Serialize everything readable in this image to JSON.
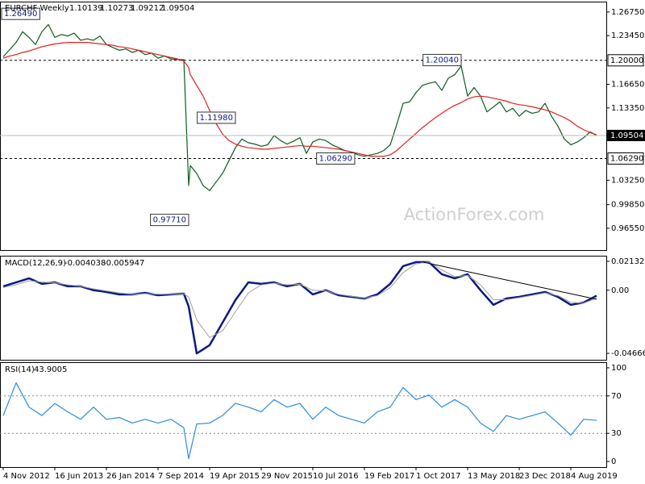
{
  "chart_data": [
    {
      "type": "line",
      "title": "EURCHF Weekly",
      "ohlc_last": [
        1.10139,
        1.10273,
        1.09212
      ],
      "watermark": "ActionForex.com",
      "x": [
        "2012-11-04",
        "2012-12-02",
        "2012-12-30",
        "2013-01-27",
        "2013-02-24",
        "2013-03-24",
        "2013-04-21",
        "2013-05-19",
        "2013-06-16",
        "2013-07-14",
        "2013-08-11",
        "2013-09-08",
        "2013-10-06",
        "2013-11-03",
        "2013-12-01",
        "2013-12-29",
        "2014-01-26",
        "2014-02-23",
        "2014-03-23",
        "2014-04-20",
        "2014-05-18",
        "2014-06-15",
        "2014-07-13",
        "2014-08-10",
        "2014-09-07",
        "2014-10-05",
        "2014-11-02",
        "2014-11-30",
        "2014-12-28",
        "2015-01-18",
        "2015-01-25",
        "2015-02-22",
        "2015-03-22",
        "2015-04-19",
        "2015-05-17",
        "2015-06-14",
        "2015-07-12",
        "2015-08-09",
        "2015-09-06",
        "2015-10-04",
        "2015-11-01",
        "2015-11-29",
        "2015-12-27",
        "2016-01-24",
        "2016-02-21",
        "2016-03-20",
        "2016-04-17",
        "2016-05-15",
        "2016-06-12",
        "2016-07-10",
        "2016-08-07",
        "2016-09-04",
        "2016-10-02",
        "2016-10-30",
        "2016-11-27",
        "2016-12-25",
        "2017-01-22",
        "2017-02-19",
        "2017-03-19",
        "2017-04-16",
        "2017-05-14",
        "2017-06-11",
        "2017-07-09",
        "2017-08-06",
        "2017-09-03",
        "2017-10-01",
        "2017-10-29",
        "2017-11-26",
        "2017-12-24",
        "2018-01-21",
        "2018-02-18",
        "2018-03-18",
        "2018-04-15",
        "2018-05-13",
        "2018-06-10",
        "2018-07-08",
        "2018-08-05",
        "2018-09-02",
        "2018-09-30",
        "2018-10-28",
        "2018-11-25",
        "2018-12-23",
        "2019-01-20",
        "2019-02-17",
        "2019-03-17",
        "2019-04-14",
        "2019-05-12",
        "2019-06-09",
        "2019-07-07",
        "2019-08-04",
        "2019-09-01",
        "2019-09-29",
        "2019-10-27",
        "2019-11-24"
      ],
      "xlim": [
        "2012-10-21",
        "2020-01-05"
      ],
      "ylim": [
        0.935,
        1.282
      ],
      "yticks": [
        {
          "value": 1.2675,
          "label": "1.26750"
        },
        {
          "value": 1.2345,
          "label": "1.23450"
        },
        {
          "value": 1.1665,
          "label": "1.16650"
        },
        {
          "value": 1.1335,
          "label": "1.13350"
        },
        {
          "value": 1.0325,
          "label": "1.03250"
        },
        {
          "value": 0.9985,
          "label": "0.99850"
        },
        {
          "value": 0.9655,
          "label": "0.96550"
        }
      ],
      "levels": [
        {
          "value": 1.2,
          "label": "1.20000"
        },
        {
          "value": 1.0629,
          "label": "1.06290"
        }
      ],
      "annotations": [
        {
          "x": "2013-01-06",
          "value": 1.2649,
          "label": "1.26490"
        },
        {
          "x": "2018-04-15",
          "value": 1.2004,
          "label": "1.20040"
        },
        {
          "x": "2015-08-09",
          "value": 1.1198,
          "label": "1.11980"
        },
        {
          "x": "2017-01-08",
          "value": 1.0629,
          "label": "1.06290"
        },
        {
          "x": "2015-01-18",
          "value": 0.9771,
          "label": "0.97710"
        }
      ],
      "series": [
        {
          "color": "#0b5d1e",
          "values": [
            1.205,
            1.215,
            1.225,
            1.24,
            1.232,
            1.222,
            1.24,
            1.25,
            1.232,
            1.236,
            1.234,
            1.238,
            1.228,
            1.23,
            1.228,
            1.234,
            1.222,
            1.218,
            1.214,
            1.216,
            1.211,
            1.214,
            1.208,
            1.21,
            1.203,
            1.206,
            1.202,
            1.201,
            1.201,
            1.025,
            1.053,
            1.042,
            1.025,
            1.018,
            1.03,
            1.042,
            1.06,
            1.078,
            1.09,
            1.085,
            1.083,
            1.08,
            1.082,
            1.095,
            1.088,
            1.083,
            1.087,
            1.092,
            1.07,
            1.086,
            1.09,
            1.088,
            1.082,
            1.078,
            1.074,
            1.072,
            1.068,
            1.066,
            1.068,
            1.07,
            1.074,
            1.082,
            1.11,
            1.14,
            1.142,
            1.155,
            1.165,
            1.168,
            1.17,
            1.158,
            1.175,
            1.18,
            1.192,
            1.15,
            1.162,
            1.15,
            1.128,
            1.135,
            1.142,
            1.128,
            1.133,
            1.122,
            1.13,
            1.126,
            1.128,
            1.14,
            1.122,
            1.108,
            1.09,
            1.082,
            1.086,
            1.092,
            1.1,
            1.09504
          ]
        },
        {
          "color": "#e02020",
          "values": [
            1.203,
            1.206,
            1.208,
            1.211,
            1.213,
            1.216,
            1.219,
            1.221,
            1.223,
            1.224,
            1.225,
            1.225,
            1.225,
            1.225,
            1.224,
            1.223,
            1.222,
            1.221,
            1.219,
            1.218,
            1.216,
            1.214,
            1.212,
            1.21,
            1.208,
            1.206,
            1.204,
            1.202,
            1.199,
            1.19,
            1.18,
            1.165,
            1.15,
            1.13,
            1.112,
            1.097,
            1.088,
            1.083,
            1.08,
            1.078,
            1.077,
            1.076,
            1.076,
            1.077,
            1.078,
            1.079,
            1.08,
            1.081,
            1.08,
            1.08,
            1.079,
            1.078,
            1.077,
            1.076,
            1.074,
            1.072,
            1.07,
            1.068,
            1.066,
            1.066,
            1.066,
            1.068,
            1.074,
            1.082,
            1.09,
            1.098,
            1.106,
            1.113,
            1.12,
            1.126,
            1.132,
            1.137,
            1.141,
            1.146,
            1.149,
            1.15,
            1.149,
            1.147,
            1.145,
            1.143,
            1.14,
            1.138,
            1.137,
            1.135,
            1.133,
            1.131,
            1.128,
            1.124,
            1.12,
            1.115,
            1.108,
            1.103,
            1.099,
            1.096
          ]
        }
      ]
    },
    {
      "type": "line",
      "title": "MACD(12,26,9)",
      "x": [
        "2012-11-04",
        "2012-12-30",
        "2013-02-24",
        "2013-04-21",
        "2013-06-16",
        "2013-08-11",
        "2013-10-06",
        "2013-12-01",
        "2014-01-26",
        "2014-03-23",
        "2014-05-18",
        "2014-07-13",
        "2014-09-07",
        "2014-11-02",
        "2014-12-28",
        "2015-01-18",
        "2015-02-22",
        "2015-04-19",
        "2015-06-14",
        "2015-08-09",
        "2015-10-04",
        "2015-11-29",
        "2016-01-24",
        "2016-03-20",
        "2016-05-15",
        "2016-07-10",
        "2016-09-04",
        "2016-10-30",
        "2016-12-25",
        "2017-02-19",
        "2017-04-16",
        "2017-06-11",
        "2017-08-06",
        "2017-10-01",
        "2017-11-26",
        "2018-01-21",
        "2018-03-18",
        "2018-05-13",
        "2018-07-08",
        "2018-09-02",
        "2018-10-28",
        "2018-12-23",
        "2019-02-17",
        "2019-04-14",
        "2019-06-09",
        "2019-08-04",
        "2019-09-29",
        "2019-11-24"
      ],
      "xlim": [
        "2012-10-21",
        "2020-01-05"
      ],
      "ylim": [
        -0.0514,
        0.0255
      ],
      "yticks": [
        0.021324,
        {
          "value": 0,
          "label": "0.00"
        },
        -0.046663
      ],
      "series": [
        {
          "color": "#0a1a80",
          "values": [
            0.0029,
            0.0058,
            0.0088,
            0.0047,
            0.0058,
            0.0029,
            0.0029,
            0,
            -0.0013,
            -0.0031,
            -0.0031,
            -0.0019,
            -0.0037,
            -0.0031,
            -0.0025,
            -0.012,
            -0.0467,
            -0.0406,
            -0.024,
            -0.0073,
            0.0058,
            0.0047,
            0.0058,
            0.0029,
            0.0047,
            -0.0031,
            0,
            -0.0037,
            -0.0049,
            -0.0061,
            -0.0031,
            0.0047,
            0.0178,
            0.0208,
            0.0208,
            0.0118,
            0.0088,
            0.0118,
            0,
            -0.0108,
            -0.0061,
            -0.0049,
            -0.0031,
            -0.0013,
            -0.0049,
            -0.0108,
            -0.0091,
            -0.004038
          ]
        },
        {
          "color": "#a0a0a0",
          "values": [
            0.002,
            0.004,
            0.007,
            0.006,
            0.0055,
            0.004,
            0.003,
            0.001,
            -0.0005,
            -0.002,
            -0.003,
            -0.0025,
            -0.003,
            -0.003,
            -0.0027,
            -0.005,
            -0.022,
            -0.035,
            -0.03,
            -0.016,
            -0.002,
            0.004,
            0.0052,
            0.004,
            0.0045,
            0,
            -0.0005,
            -0.003,
            -0.0045,
            -0.0057,
            -0.004,
            0.002,
            0.013,
            0.0195,
            0.021,
            0.015,
            0.01,
            0.011,
            0.004,
            -0.007,
            -0.007,
            -0.0055,
            -0.0038,
            -0.002,
            -0.004,
            -0.009,
            -0.0095,
            -0.005947
          ]
        }
      ]
    },
    {
      "type": "line",
      "title": "RSI(14)",
      "x": [
        "2012-11-04",
        "2012-12-30",
        "2013-02-24",
        "2013-04-21",
        "2013-06-16",
        "2013-08-11",
        "2013-10-06",
        "2013-12-01",
        "2014-01-26",
        "2014-03-23",
        "2014-05-18",
        "2014-07-13",
        "2014-09-07",
        "2014-11-02",
        "2014-12-28",
        "2015-01-18",
        "2015-02-22",
        "2015-04-19",
        "2015-06-14",
        "2015-08-09",
        "2015-10-04",
        "2015-11-29",
        "2016-01-24",
        "2016-03-20",
        "2016-05-15",
        "2016-07-10",
        "2016-09-04",
        "2016-10-30",
        "2016-12-25",
        "2017-02-19",
        "2017-04-16",
        "2017-06-11",
        "2017-08-06",
        "2017-10-01",
        "2017-11-26",
        "2018-01-21",
        "2018-03-18",
        "2018-05-13",
        "2018-07-08",
        "2018-09-02",
        "2018-10-28",
        "2018-12-23",
        "2019-02-17",
        "2019-04-14",
        "2019-06-09",
        "2019-08-04",
        "2019-09-29",
        "2019-11-24"
      ],
      "xlim": [
        "2012-10-21",
        "2020-01-05"
      ],
      "ylim": [
        -6,
        106
      ],
      "yticks": [
        100,
        70,
        30,
        0
      ],
      "levels": [
        70,
        30
      ],
      "xticks": [
        {
          "value": "2012-11-04",
          "label": "4 Nov 2012"
        },
        {
          "value": "2013-06-16",
          "label": "16 Jun 2013"
        },
        {
          "value": "2014-01-26",
          "label": "26 Jan 2014"
        },
        {
          "value": "2014-09-07",
          "label": "7 Sep 2014"
        },
        {
          "value": "2015-04-19",
          "label": "19 Apr 2015"
        },
        {
          "value": "2015-11-29",
          "label": "29 Nov 2015"
        },
        {
          "value": "2016-07-10",
          "label": "10 Jul 2016"
        },
        {
          "value": "2017-02-19",
          "label": "19 Feb 2017"
        },
        {
          "value": "2017-10-01",
          "label": "1 Oct 2017"
        },
        {
          "value": "2018-05-13",
          "label": "13 May 2018"
        },
        {
          "value": "2018-12-23",
          "label": "23 Dec 2018"
        },
        {
          "value": "2019-08-04",
          "label": "4 Aug 2019"
        }
      ],
      "series": [
        {
          "color": "#2a8be0",
          "values": [
            49,
            84,
            58,
            49,
            62,
            53,
            45,
            58,
            45,
            47,
            41,
            45,
            41,
            45,
            36,
            3,
            40,
            41,
            49,
            62,
            58,
            53,
            66,
            58,
            62,
            45,
            58,
            49,
            45,
            41,
            53,
            58,
            79,
            66,
            71,
            58,
            66,
            58,
            41,
            32,
            49,
            45,
            49,
            53,
            41,
            28,
            45,
            43.9005
          ]
        }
      ]
    }
  ]
}
